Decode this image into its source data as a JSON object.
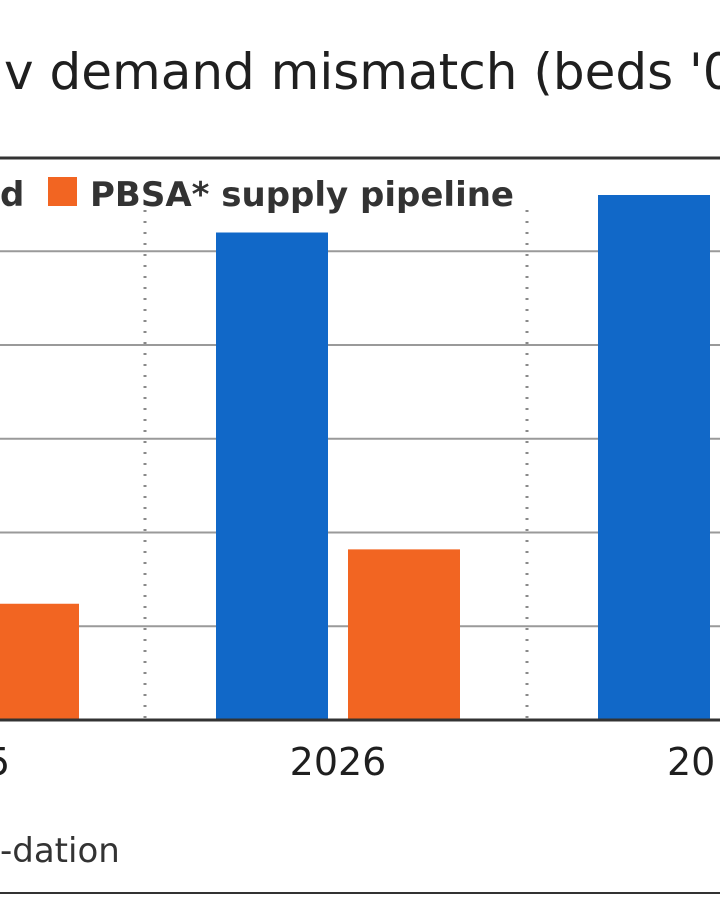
{
  "chart_data": {
    "type": "bar",
    "title": "v demand mismatch (beds '0",
    "categories": [
      "5",
      "2026",
      "20"
    ],
    "series": [
      {
        "name": "d",
        "color": "#1168c8",
        "values": [
          null,
          520,
          560
        ]
      },
      {
        "name": "PBSA* supply pipeline",
        "color": "#f26522",
        "values": [
          124,
          182,
          null
        ]
      }
    ],
    "ylim": [
      0,
      600
    ],
    "gridline_values": [
      100,
      200,
      300,
      400,
      500
    ],
    "grid": true,
    "legend_position": "top-left",
    "footer": "-dation"
  }
}
